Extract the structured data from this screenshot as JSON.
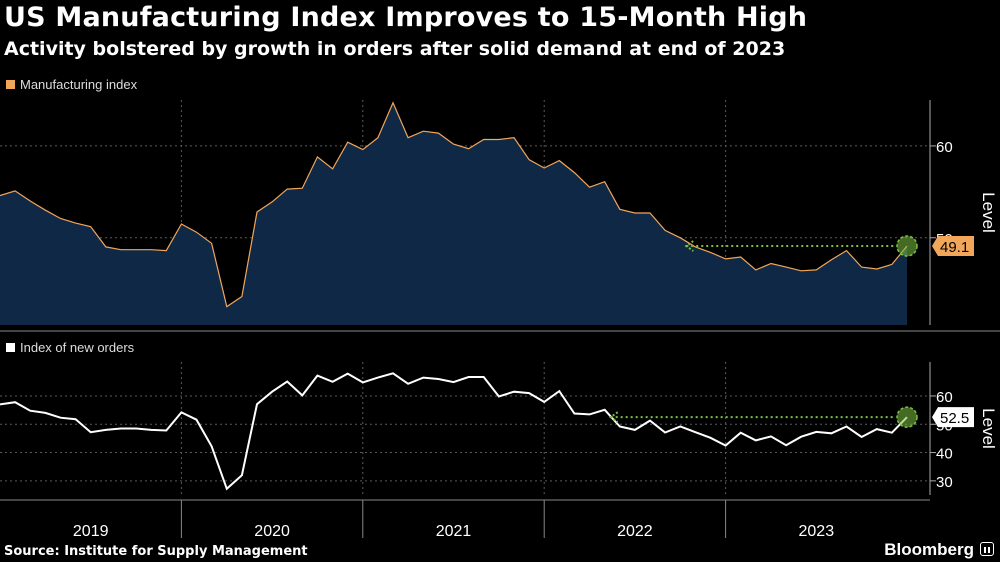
{
  "title": "US Manufacturing Index Improves to 15-Month High",
  "subtitle": "Activity bolstered by growth in orders after solid demand at end of 2023",
  "source": "Source: Institute for Supply Management",
  "brand": "Bloomberg",
  "colors": {
    "background": "#000000",
    "manufacturing": "#f2a65a",
    "area_fill": "#0e2845",
    "orders": "#ffffff",
    "highlight": "#7cc142"
  },
  "chart_data": [
    {
      "type": "area",
      "legend": "Manufacturing index",
      "ylabel": "Level",
      "yticks": [
        50,
        60
      ],
      "ylim": [
        40.5,
        65
      ],
      "x_years": [
        "2019",
        "2020",
        "2021",
        "2022",
        "2023"
      ],
      "x_range": [
        "2019-01",
        "2024-01"
      ],
      "highlight_label": "49.1",
      "series": [
        {
          "x": [
            "2019-01",
            "2019-02",
            "2019-03",
            "2019-04",
            "2019-05",
            "2019-06",
            "2019-07",
            "2019-08",
            "2019-09",
            "2019-10",
            "2019-11",
            "2019-12",
            "2020-01",
            "2020-02",
            "2020-03",
            "2020-04",
            "2020-05",
            "2020-06",
            "2020-07",
            "2020-08",
            "2020-09",
            "2020-10",
            "2020-11",
            "2020-12",
            "2021-01",
            "2021-02",
            "2021-03",
            "2021-04",
            "2021-05",
            "2021-06",
            "2021-07",
            "2021-08",
            "2021-09",
            "2021-10",
            "2021-11",
            "2021-12",
            "2022-01",
            "2022-02",
            "2022-03",
            "2022-04",
            "2022-05",
            "2022-06",
            "2022-07",
            "2022-08",
            "2022-09",
            "2022-10",
            "2022-11",
            "2022-12",
            "2023-01",
            "2023-02",
            "2023-03",
            "2023-04",
            "2023-05",
            "2023-06",
            "2023-07",
            "2023-08",
            "2023-09",
            "2023-10",
            "2023-11",
            "2023-12",
            "2024-01"
          ],
          "values": [
            54.6,
            55.1,
            54.0,
            53.0,
            52.1,
            51.6,
            51.2,
            49.0,
            48.7,
            48.7,
            48.7,
            48.6,
            51.5,
            50.6,
            49.4,
            42.5,
            43.6,
            52.8,
            53.9,
            55.3,
            55.4,
            58.8,
            57.5,
            60.4,
            59.6,
            60.9,
            64.7,
            60.9,
            61.6,
            61.4,
            60.2,
            59.7,
            60.7,
            60.7,
            60.9,
            58.5,
            57.6,
            58.4,
            57.1,
            55.5,
            56.1,
            53.1,
            52.7,
            52.7,
            50.8,
            50.0,
            49.0,
            48.4,
            47.7,
            47.9,
            46.5,
            47.2,
            46.8,
            46.4,
            46.5,
            47.6,
            48.6,
            46.8,
            46.6,
            47.1,
            49.1
          ]
        }
      ]
    },
    {
      "type": "line",
      "legend": "Index of new orders",
      "ylabel": "Level",
      "yticks": [
        30,
        40,
        50,
        60
      ],
      "ylim": [
        25,
        72
      ],
      "highlight_label": "52.5",
      "series": [
        {
          "x": [
            "2019-01",
            "2019-02",
            "2019-03",
            "2019-04",
            "2019-05",
            "2019-06",
            "2019-07",
            "2019-08",
            "2019-09",
            "2019-10",
            "2019-11",
            "2019-12",
            "2020-01",
            "2020-02",
            "2020-03",
            "2020-04",
            "2020-05",
            "2020-06",
            "2020-07",
            "2020-08",
            "2020-09",
            "2020-10",
            "2020-11",
            "2020-12",
            "2021-01",
            "2021-02",
            "2021-03",
            "2021-04",
            "2021-05",
            "2021-06",
            "2021-07",
            "2021-08",
            "2021-09",
            "2021-10",
            "2021-11",
            "2021-12",
            "2022-01",
            "2022-02",
            "2022-03",
            "2022-04",
            "2022-05",
            "2022-06",
            "2022-07",
            "2022-08",
            "2022-09",
            "2022-10",
            "2022-11",
            "2022-12",
            "2023-01",
            "2023-02",
            "2023-03",
            "2023-04",
            "2023-05",
            "2023-06",
            "2023-07",
            "2023-08",
            "2023-09",
            "2023-10",
            "2023-11",
            "2023-12",
            "2024-01"
          ],
          "values": [
            57.0,
            57.8,
            54.8,
            54.0,
            52.3,
            51.8,
            47.2,
            48.0,
            48.5,
            48.5,
            48.0,
            47.8,
            54.2,
            51.6,
            42.2,
            27.2,
            32.0,
            57.1,
            61.5,
            65.1,
            60.2,
            67.2,
            65.0,
            67.9,
            64.8,
            66.5,
            68.0,
            64.3,
            66.5,
            66.0,
            64.9,
            66.7,
            66.7,
            59.8,
            61.5,
            61.0,
            57.9,
            61.7,
            53.8,
            53.5,
            55.1,
            49.2,
            48.0,
            51.3,
            47.1,
            49.2,
            47.2,
            45.2,
            42.5,
            47.0,
            44.3,
            45.7,
            42.6,
            45.6,
            47.3,
            46.8,
            49.2,
            45.5,
            48.3,
            47.0,
            52.5
          ]
        }
      ]
    }
  ]
}
